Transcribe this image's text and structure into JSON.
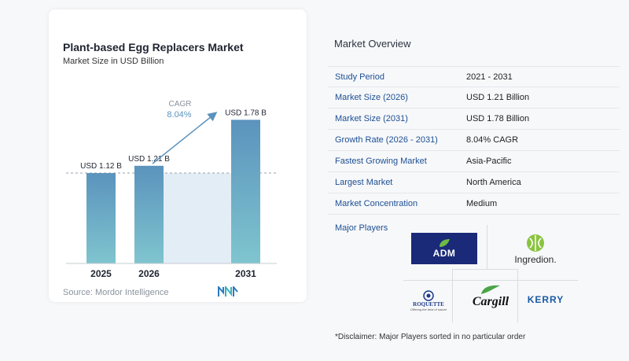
{
  "chart": {
    "title": "Plant-based Egg Replacers Market",
    "subtitle": "Market Size in USD Billion",
    "source": "Source: Mordor Intelligence",
    "cagr_label": "CAGR",
    "cagr_value": "8.04%"
  },
  "chart_data": {
    "type": "bar",
    "title": "Plant-based Egg Replacers Market",
    "subtitle": "Market Size in USD Billion",
    "categories": [
      "2025",
      "2026",
      "2031"
    ],
    "values": [
      1.12,
      1.21,
      1.78
    ],
    "data_labels": [
      "USD 1.12 B",
      "USD 1.21 B",
      "USD 1.78 B"
    ],
    "ylim": [
      0,
      1.9
    ],
    "colors": {
      "bar_top": "#5b93bd",
      "bar_bottom": "#7fc5cf",
      "shade": "#e3edf5",
      "arrow": "#5b93bd"
    }
  },
  "overview": {
    "title": "Market Overview",
    "rows": [
      {
        "label": "Study Period",
        "value": "2021 - 2031"
      },
      {
        "label": "Market Size (2026)",
        "value": "USD 1.21 Billion"
      },
      {
        "label": "Market Size (2031)",
        "value": "USD 1.78 Billion"
      },
      {
        "label": "Growth Rate (2026 - 2031)",
        "value": "8.04% CAGR"
      },
      {
        "label": "Fastest Growing Market",
        "value": "Asia-Pacific"
      },
      {
        "label": "Largest Market",
        "value": "North America"
      },
      {
        "label": "Market Concentration",
        "value": "Medium"
      }
    ],
    "players_title": "Major Players",
    "players": {
      "adm": "ADM",
      "ingredion": "Ingredion.",
      "roquette": "ROQUETTE",
      "roquette_tagline": "Offering the best of nature",
      "cargill": "Cargill",
      "kerry": "KERRY"
    },
    "disclaimer": "*Disclaimer: Major Players sorted in no particular order"
  }
}
